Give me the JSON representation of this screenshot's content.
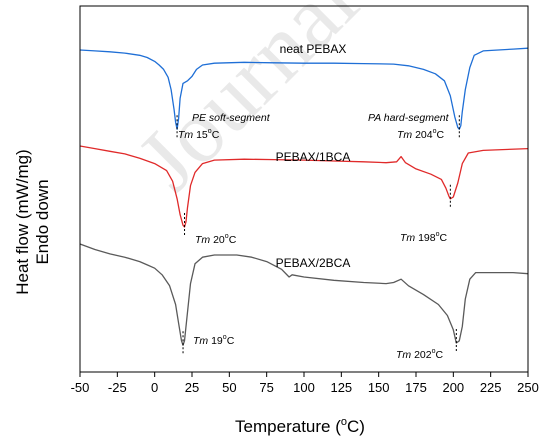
{
  "chart_data": {
    "type": "line",
    "xlabel_main": "Temperature (",
    "xlabel_sup": "o",
    "xlabel_end": "C)",
    "ylabel_line1": "Heat flow (mW/mg)",
    "ylabel_line2": "Endo down",
    "xlim": [
      -50,
      250
    ],
    "xticks": [
      "-50",
      "-25",
      "0",
      "25",
      "50",
      "75",
      "100",
      "125",
      "150",
      "175",
      "200",
      "225",
      "250"
    ],
    "watermark": "Journal",
    "series": [
      {
        "name": "neat PEBAX",
        "color": "#1f6fd6",
        "offset": 0,
        "points": [
          [
            -50,
            0
          ],
          [
            -40,
            0.01
          ],
          [
            -30,
            0.02
          ],
          [
            -20,
            0.035
          ],
          [
            -10,
            0.06
          ],
          [
            -5,
            0.085
          ],
          [
            0,
            0.13
          ],
          [
            3,
            0.17
          ],
          [
            6,
            0.22
          ],
          [
            9,
            0.31
          ],
          [
            11,
            0.45
          ],
          [
            13,
            0.68
          ],
          [
            14,
            0.82
          ],
          [
            15,
            0.9
          ],
          [
            16,
            0.78
          ],
          [
            17,
            0.55
          ],
          [
            19,
            0.38
          ],
          [
            22,
            0.35
          ],
          [
            25,
            0.3
          ],
          [
            28,
            0.22
          ],
          [
            32,
            0.17
          ],
          [
            40,
            0.15
          ],
          [
            60,
            0.14
          ],
          [
            80,
            0.145
          ],
          [
            100,
            0.15
          ],
          [
            120,
            0.15
          ],
          [
            140,
            0.155
          ],
          [
            160,
            0.16
          ],
          [
            170,
            0.18
          ],
          [
            180,
            0.22
          ],
          [
            188,
            0.27
          ],
          [
            194,
            0.35
          ],
          [
            198,
            0.52
          ],
          [
            201,
            0.76
          ],
          [
            203,
            0.88
          ],
          [
            204,
            0.9
          ],
          [
            205,
            0.86
          ],
          [
            206,
            0.7
          ],
          [
            208,
            0.45
          ],
          [
            211,
            0.2
          ],
          [
            214,
            0.06
          ],
          [
            220,
            0.01
          ],
          [
            230,
            0
          ],
          [
            240,
            -0.01
          ],
          [
            250,
            -0.02
          ]
        ]
      },
      {
        "name": "PEBAX/1BCA",
        "color": "#e02a2a",
        "offset": 1,
        "points": [
          [
            -50,
            0
          ],
          [
            -40,
            0.03
          ],
          [
            -30,
            0.06
          ],
          [
            -20,
            0.09
          ],
          [
            -10,
            0.14
          ],
          [
            0,
            0.2
          ],
          [
            8,
            0.28
          ],
          [
            12,
            0.4
          ],
          [
            15,
            0.6
          ],
          [
            17,
            0.78
          ],
          [
            19,
            0.9
          ],
          [
            20,
            0.92
          ],
          [
            21,
            0.86
          ],
          [
            22,
            0.7
          ],
          [
            24,
            0.45
          ],
          [
            27,
            0.3
          ],
          [
            32,
            0.2
          ],
          [
            40,
            0.16
          ],
          [
            60,
            0.15
          ],
          [
            80,
            0.155
          ],
          [
            100,
            0.16
          ],
          [
            120,
            0.17
          ],
          [
            140,
            0.18
          ],
          [
            155,
            0.19
          ],
          [
            162,
            0.18
          ],
          [
            165,
            0.12
          ],
          [
            168,
            0.19
          ],
          [
            175,
            0.26
          ],
          [
            185,
            0.32
          ],
          [
            192,
            0.38
          ],
          [
            195,
            0.48
          ],
          [
            197,
            0.57
          ],
          [
            198,
            0.6
          ],
          [
            200,
            0.58
          ],
          [
            203,
            0.42
          ],
          [
            206,
            0.2
          ],
          [
            210,
            0.08
          ],
          [
            220,
            0.05
          ],
          [
            235,
            0.04
          ],
          [
            250,
            0.03
          ]
        ]
      },
      {
        "name": "PEBAX/2BCA",
        "color": "#5a5a5a",
        "offset": 2,
        "points": [
          [
            -50,
            0
          ],
          [
            -40,
            0.05
          ],
          [
            -30,
            0.09
          ],
          [
            -20,
            0.12
          ],
          [
            -10,
            0.16
          ],
          [
            -5,
            0.19
          ],
          [
            0,
            0.22
          ],
          [
            5,
            0.28
          ],
          [
            10,
            0.38
          ],
          [
            14,
            0.55
          ],
          [
            16,
            0.72
          ],
          [
            18,
            0.88
          ],
          [
            19,
            0.92
          ],
          [
            20,
            0.88
          ],
          [
            22,
            0.62
          ],
          [
            24,
            0.36
          ],
          [
            27,
            0.18
          ],
          [
            32,
            0.12
          ],
          [
            40,
            0.1
          ],
          [
            55,
            0.1
          ],
          [
            65,
            0.12
          ],
          [
            75,
            0.16
          ],
          [
            85,
            0.23
          ],
          [
            90,
            0.3
          ],
          [
            92,
            0.28
          ],
          [
            100,
            0.3
          ],
          [
            120,
            0.33
          ],
          [
            140,
            0.35
          ],
          [
            155,
            0.36
          ],
          [
            160,
            0.35
          ],
          [
            165,
            0.32
          ],
          [
            170,
            0.38
          ],
          [
            180,
            0.46
          ],
          [
            190,
            0.55
          ],
          [
            196,
            0.65
          ],
          [
            200,
            0.78
          ],
          [
            202,
            0.9
          ],
          [
            204,
            0.88
          ],
          [
            206,
            0.75
          ],
          [
            208,
            0.5
          ],
          [
            211,
            0.32
          ],
          [
            215,
            0.26
          ],
          [
            225,
            0.26
          ],
          [
            240,
            0.26
          ],
          [
            250,
            0.27
          ]
        ]
      }
    ],
    "annotations": [
      {
        "series": 0,
        "x": 15,
        "tm_label": "Tm",
        "value_label": "15",
        "deg": "o",
        "unit": "C",
        "segment_label": "PE soft-segment"
      },
      {
        "series": 0,
        "x": 204,
        "tm_label": "Tm",
        "value_label": "204",
        "deg": "o",
        "unit": "C",
        "segment_label": "PA hard-segment"
      },
      {
        "series": 1,
        "x": 20,
        "tm_label": "Tm",
        "value_label": "20",
        "deg": "o",
        "unit": "C",
        "segment_label": ""
      },
      {
        "series": 1,
        "x": 198,
        "tm_label": "Tm",
        "value_label": "198",
        "deg": "o",
        "unit": "C",
        "segment_label": ""
      },
      {
        "series": 2,
        "x": 19,
        "tm_label": "Tm",
        "value_label": "19",
        "deg": "o",
        "unit": "C",
        "segment_label": ""
      },
      {
        "series": 2,
        "x": 202,
        "tm_label": "Tm",
        "value_label": "202",
        "deg": "o",
        "unit": "C",
        "segment_label": ""
      }
    ]
  }
}
